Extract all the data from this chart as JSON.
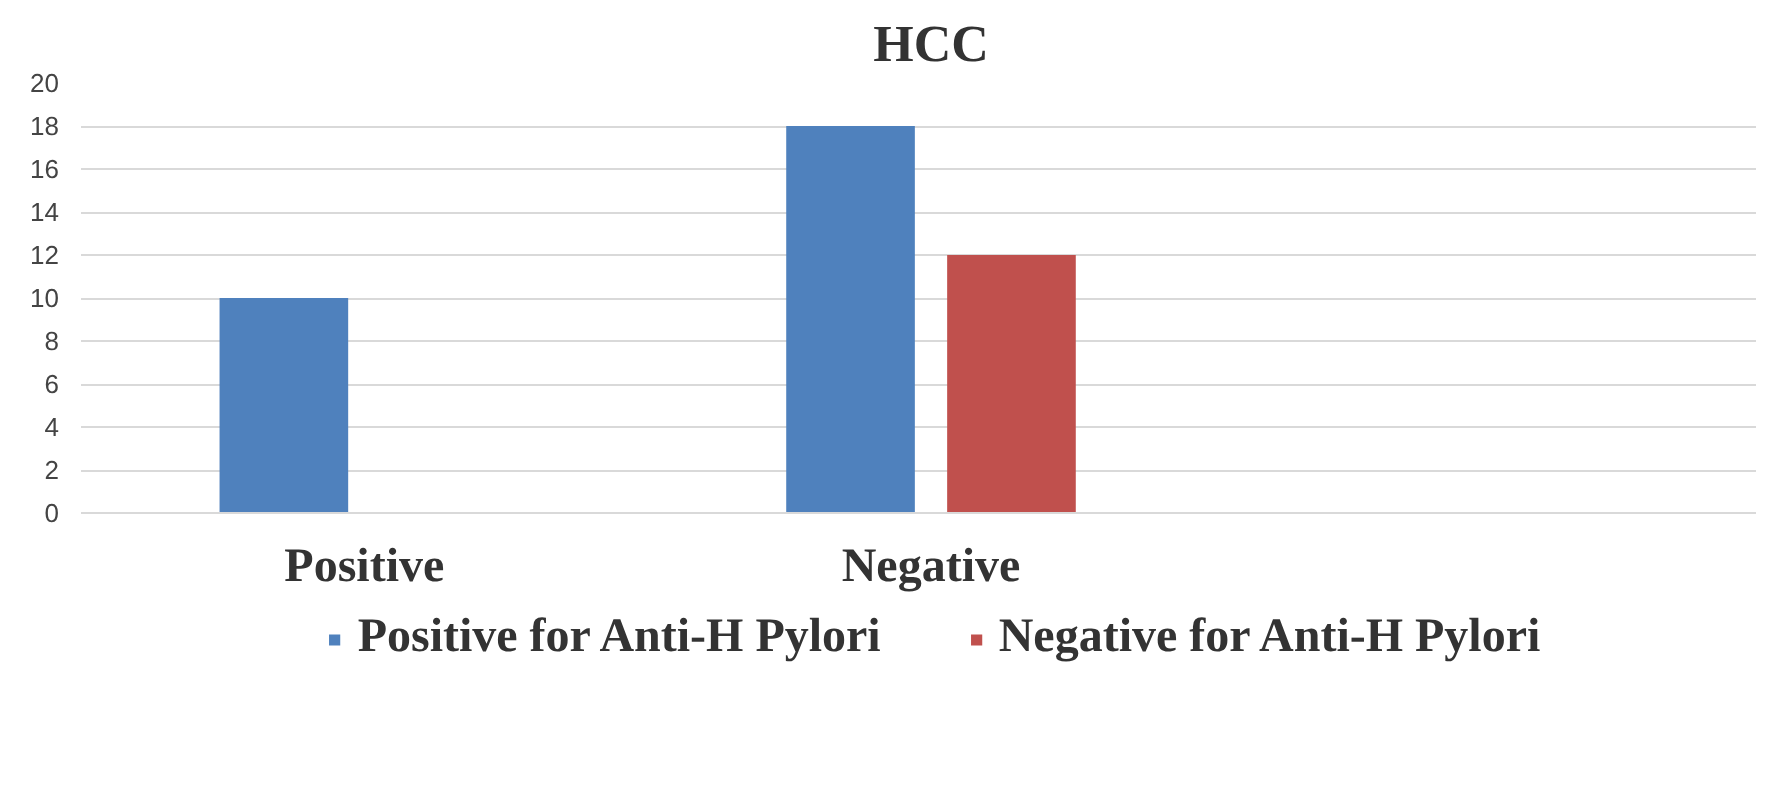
{
  "chart_data": {
    "type": "bar",
    "title": "HCC",
    "categories": [
      "Positive",
      "Negative",
      null
    ],
    "series": [
      {
        "name": "Positive for Anti-H Pylori",
        "color": "#4f81bd",
        "values": [
          10,
          18,
          null
        ]
      },
      {
        "name": "Negative for Anti-H Pylori",
        "color": "#c0504d",
        "values": [
          null,
          12,
          null
        ]
      }
    ],
    "ylim": [
      0,
      20
    ],
    "yticks": [
      0,
      2,
      4,
      6,
      8,
      10,
      12,
      14,
      16,
      18,
      20
    ],
    "grid": "y",
    "legend": "bottom"
  }
}
